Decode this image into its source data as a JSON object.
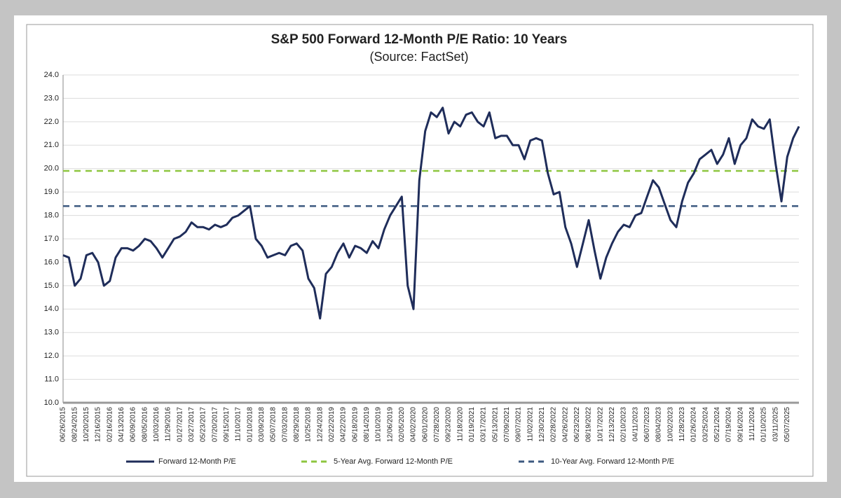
{
  "chart_data": {
    "type": "line",
    "title": "S&P 500 Forward 12-Month P/E Ratio: 10 Years",
    "subtitle": "(Source: FactSet)",
    "categories": [
      "06/26/2015",
      null,
      "08/24/2015",
      null,
      "10/20/2015",
      null,
      "12/16/2015",
      null,
      "02/16/2016",
      null,
      "04/13/2016",
      null,
      "06/09/2016",
      null,
      "08/05/2016",
      null,
      "10/03/2016",
      null,
      "11/29/2016",
      null,
      "01/27/2017",
      null,
      "03/27/2017",
      null,
      "05/23/2017",
      null,
      "07/20/2017",
      null,
      "09/15/2017",
      null,
      "11/10/2017",
      null,
      "01/10/2018",
      null,
      "03/09/2018",
      null,
      "05/07/2018",
      null,
      "07/03/2018",
      null,
      "08/29/2018",
      null,
      "10/25/2018",
      null,
      "12/24/2018",
      null,
      "02/22/2019",
      null,
      "04/22/2019",
      null,
      "06/18/2019",
      null,
      "08/14/2019",
      null,
      "10/10/2019",
      null,
      "12/06/2019",
      null,
      "02/05/2020",
      null,
      "04/02/2020",
      null,
      "06/01/2020",
      null,
      "07/28/2020",
      null,
      "09/23/2020",
      null,
      "11/18/2020",
      null,
      "01/19/2021",
      null,
      "03/17/2021",
      null,
      "05/13/2021",
      null,
      "07/09/2021",
      null,
      "09/07/2021",
      null,
      "11/02/2021",
      null,
      "12/30/2021",
      null,
      "02/28/2022",
      null,
      "04/26/2022",
      null,
      "06/23/2022",
      null,
      "08/19/2022",
      null,
      "10/17/2022",
      null,
      "12/13/2022",
      null,
      "02/10/2023",
      null,
      "04/11/2023",
      null,
      "06/07/2023",
      null,
      "08/04/2023",
      null,
      "10/02/2023",
      null,
      "11/28/2023",
      null,
      "01/26/2024",
      null,
      "03/25/2024",
      null,
      "05/21/2024",
      null,
      "07/19/2024",
      null,
      "09/16/2024",
      null,
      "11/11/2024",
      null,
      "01/10/2025",
      null,
      "03/11/2025",
      null,
      "05/07/2025",
      null,
      null
    ],
    "series": [
      {
        "name": "Forward 12-Month P/E",
        "color": "#1f2d5a",
        "values": [
          16.3,
          16.2,
          15.0,
          15.3,
          16.3,
          16.4,
          16.0,
          15.0,
          15.2,
          16.2,
          16.6,
          16.6,
          16.5,
          16.7,
          17.0,
          16.9,
          16.6,
          16.2,
          16.6,
          17.0,
          17.1,
          17.3,
          17.7,
          17.5,
          17.5,
          17.4,
          17.6,
          17.5,
          17.6,
          17.9,
          18.0,
          18.2,
          18.4,
          17.0,
          16.7,
          16.2,
          16.3,
          16.4,
          16.3,
          16.7,
          16.8,
          16.5,
          15.3,
          14.9,
          13.6,
          15.5,
          15.8,
          16.4,
          16.8,
          16.2,
          16.7,
          16.6,
          16.4,
          16.9,
          16.6,
          17.4,
          18.0,
          18.4,
          18.8,
          15.0,
          14.0,
          19.5,
          21.6,
          22.4,
          22.2,
          22.6,
          21.5,
          22.0,
          21.8,
          22.3,
          22.4,
          22.0,
          21.8,
          22.4,
          21.3,
          21.4,
          21.4,
          21.0,
          21.0,
          20.4,
          21.2,
          21.3,
          21.2,
          19.8,
          18.9,
          19.0,
          17.5,
          16.8,
          15.8,
          16.8,
          17.8,
          16.5,
          15.3,
          16.2,
          16.8,
          17.3,
          17.6,
          17.5,
          18.0,
          18.1,
          18.8,
          19.5,
          19.2,
          18.5,
          17.8,
          17.5,
          18.6,
          19.4,
          19.8,
          20.4,
          20.6,
          20.8,
          20.2,
          20.6,
          21.3,
          20.2,
          21.0,
          21.3,
          22.1,
          21.8,
          21.7,
          22.1,
          20.2,
          18.6,
          20.5,
          21.3,
          21.8
        ]
      }
    ],
    "reference_lines": [
      {
        "name": "5-Year Avg. Forward 12-Month P/E",
        "color": "#8dc63f",
        "value": 19.9
      },
      {
        "name": "10-Year Avg. Forward 12-Month P/E",
        "color": "#3d5a80",
        "value": 18.4
      }
    ],
    "ylim": [
      10,
      24
    ],
    "yticks": [
      {
        "value": 10,
        "label": "10.0"
      },
      {
        "value": 11,
        "label": "11.0"
      },
      {
        "value": 12,
        "label": "12.0"
      },
      {
        "value": 13,
        "label": "13.0"
      },
      {
        "value": 14,
        "label": "14.0"
      },
      {
        "value": 15,
        "label": "15.0"
      },
      {
        "value": 16,
        "label": "16.0"
      },
      {
        "value": 17,
        "label": "17.0"
      },
      {
        "value": 18,
        "label": "18.0"
      },
      {
        "value": 19,
        "label": "19.0"
      },
      {
        "value": 20,
        "label": "20.0"
      },
      {
        "value": 21,
        "label": "21.0"
      },
      {
        "value": 22,
        "label": "22.0"
      },
      {
        "value": 23,
        "label": "23.0"
      },
      {
        "value": 24,
        "label": "24.0"
      }
    ],
    "grid": true
  }
}
